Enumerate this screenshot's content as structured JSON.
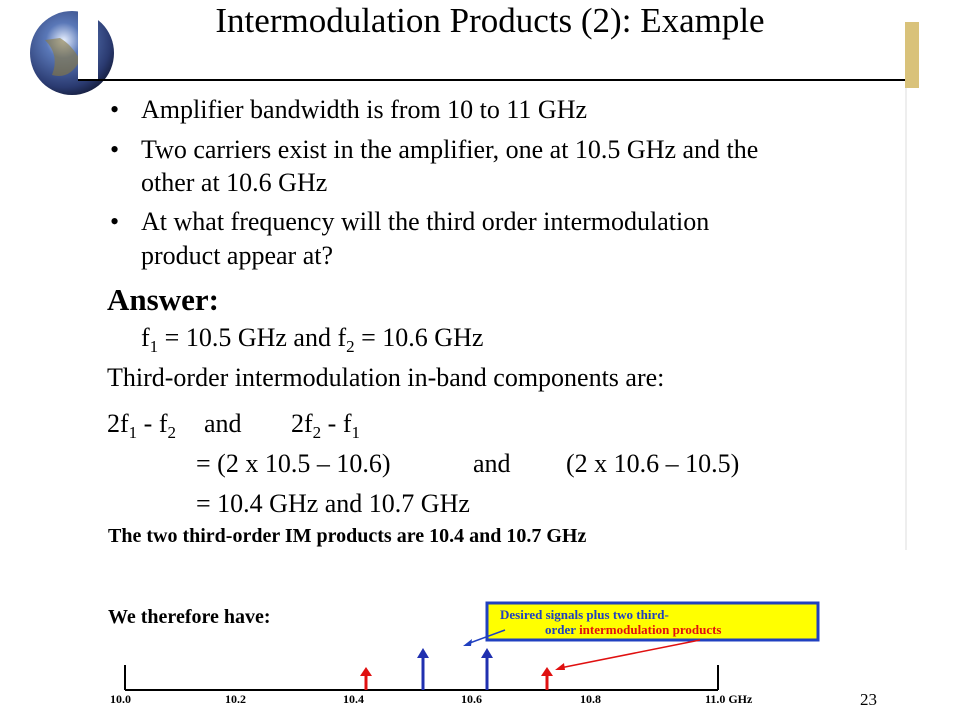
{
  "title": "Intermodulation Products (2):  Example",
  "bullets": [
    {
      "lines": [
        "Amplifier bandwidth is from 10 to 11 GHz"
      ]
    },
    {
      "lines": [
        "Two carriers exist in the amplifier, one at 10.5 GHz and the",
        "other at 10.6 GHz"
      ]
    },
    {
      "lines": [
        "At what frequency will the third order intermodulation",
        "product appear at?"
      ]
    }
  ],
  "answer": {
    "heading": "Answer:",
    "given": [
      "f",
      "1",
      " = 10.5 GHz and f",
      "2",
      " = 10.6 GHz"
    ],
    "statement": "Third-order intermodulation in-band components are:",
    "expr_left": [
      "2f",
      "1",
      " - f",
      "2"
    ],
    "expr_and": "and",
    "expr_right": [
      "2f",
      "2",
      " - f",
      "1"
    ],
    "step1": {
      "left": "= (2 x 10.5 – 10.6)",
      "and": "and",
      "right": "(2 x 10.6 – 10.5)"
    },
    "step2": "= 10.4 GHz and 10.7 GHz"
  },
  "figure": {
    "caption": "The two third-order IM products are 10.4 and 10.7 GHz",
    "lead": "We therefore have:",
    "callout": {
      "line1": "Desired signals plus two third-",
      "line2_a": "order",
      "line2_b": "intermodulation products"
    },
    "axis_labels": [
      "10.0",
      "10.2",
      "10.4",
      "10.6",
      "10.8",
      "11.0 GHz"
    ]
  },
  "page_number": "23"
}
